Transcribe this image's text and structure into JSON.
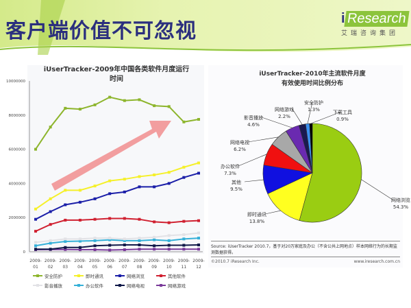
{
  "header": {
    "title": "客户端价值不可忽视",
    "logo_text": "iResearch",
    "logo_sub": "艾瑞咨询集团"
  },
  "chart_data": [
    {
      "type": "line",
      "title": "iUserTracker-2009年中国各类软件月度运行时间",
      "categories": [
        "2009-01",
        "2009-02",
        "2009-03",
        "2009-04",
        "2009-05",
        "2009-06",
        "2009-07",
        "2009-08",
        "2009-09",
        "2009-10",
        "2009-11",
        "2009-12"
      ],
      "ylim": [
        0,
        10000000
      ],
      "yticks": [
        0,
        2000000,
        4000000,
        6000000,
        8000000,
        10000000
      ],
      "legend": "bottom",
      "grid": false,
      "series": [
        {
          "name": "安全防护",
          "color": "#8db52c",
          "values": [
            6000000,
            7300000,
            8400000,
            8350000,
            8600000,
            9050000,
            8850000,
            8900000,
            8550000,
            8500000,
            7600000,
            7750000
          ]
        },
        {
          "name": "即时通讯",
          "color": "#f5f02a",
          "values": [
            2500000,
            3100000,
            3600000,
            3600000,
            3850000,
            4150000,
            4250000,
            4400000,
            4500000,
            4650000,
            4950000,
            5200000
          ]
        },
        {
          "name": "网络浏览",
          "color": "#1b1fa8",
          "values": [
            1900000,
            2350000,
            2750000,
            2900000,
            3100000,
            3400000,
            3500000,
            3800000,
            3800000,
            4000000,
            4350000,
            4600000
          ]
        },
        {
          "name": "其他软件",
          "color": "#d02030",
          "values": [
            1200000,
            1600000,
            1850000,
            1850000,
            1900000,
            1950000,
            1950000,
            1900000,
            1750000,
            1700000,
            1780000,
            1820000
          ]
        },
        {
          "name": "影音播放",
          "color": "#e2e2e6",
          "values": [
            550000,
            650000,
            750000,
            750000,
            800000,
            800000,
            750000,
            800000,
            850000,
            950000,
            1000000,
            1100000
          ]
        },
        {
          "name": "办公软件",
          "color": "#35b0d8",
          "values": [
            350000,
            500000,
            600000,
            620000,
            650000,
            700000,
            650000,
            650000,
            700000,
            650000,
            750000,
            800000
          ]
        },
        {
          "name": "网络电视",
          "color": "#101848",
          "values": [
            150000,
            150000,
            250000,
            250000,
            350000,
            380000,
            400000,
            400000,
            350000,
            380000,
            380000,
            400000
          ]
        },
        {
          "name": "网络游戏",
          "color": "#7a3a9a",
          "values": [
            120000,
            130000,
            130000,
            120000,
            120000,
            100000,
            120000,
            150000,
            150000,
            150000,
            150000,
            150000
          ]
        }
      ]
    },
    {
      "type": "pie",
      "title": "iUserTracker-2010年主流软件月度有效使用时间比例分布",
      "slices": [
        {
          "label": "网络浏览",
          "value": 54.3,
          "display": "54.3%",
          "color": "#9acd12"
        },
        {
          "label": "即时通讯",
          "value": 13.8,
          "display": "13.8%",
          "color": "#ffff20"
        },
        {
          "label": "其他",
          "value": 9.5,
          "display": "9.5%",
          "color": "#1010e0"
        },
        {
          "label": "办公软件",
          "value": 7.3,
          "display": "7.3%",
          "color": "#f01010"
        },
        {
          "label": "网络电视",
          "value": 6.2,
          "display": "6.2%",
          "color": "#a8a8a8"
        },
        {
          "label": "影音播放",
          "value": 4.6,
          "display": "4.6%",
          "color": "#6a2ab0"
        },
        {
          "label": "网络游戏",
          "value": 2.2,
          "display": "2.2%",
          "color": "#1a1a50"
        },
        {
          "label": "安全防护",
          "value": 1.3,
          "display": "1.3%",
          "color": "#3a90f0"
        },
        {
          "label": "下载工具",
          "value": 0.9,
          "display": "0.9%",
          "color": "#000000"
        }
      ]
    }
  ],
  "footer": {
    "source": "Source: iUserTracker 2010.7，基于对20万家庭及办公（不含公共上网地点）样本网络行为的长期监测数据获得。",
    "copyright": "©2010.7 iResearch Inc.",
    "url": "www.iresearch.com.cn"
  }
}
